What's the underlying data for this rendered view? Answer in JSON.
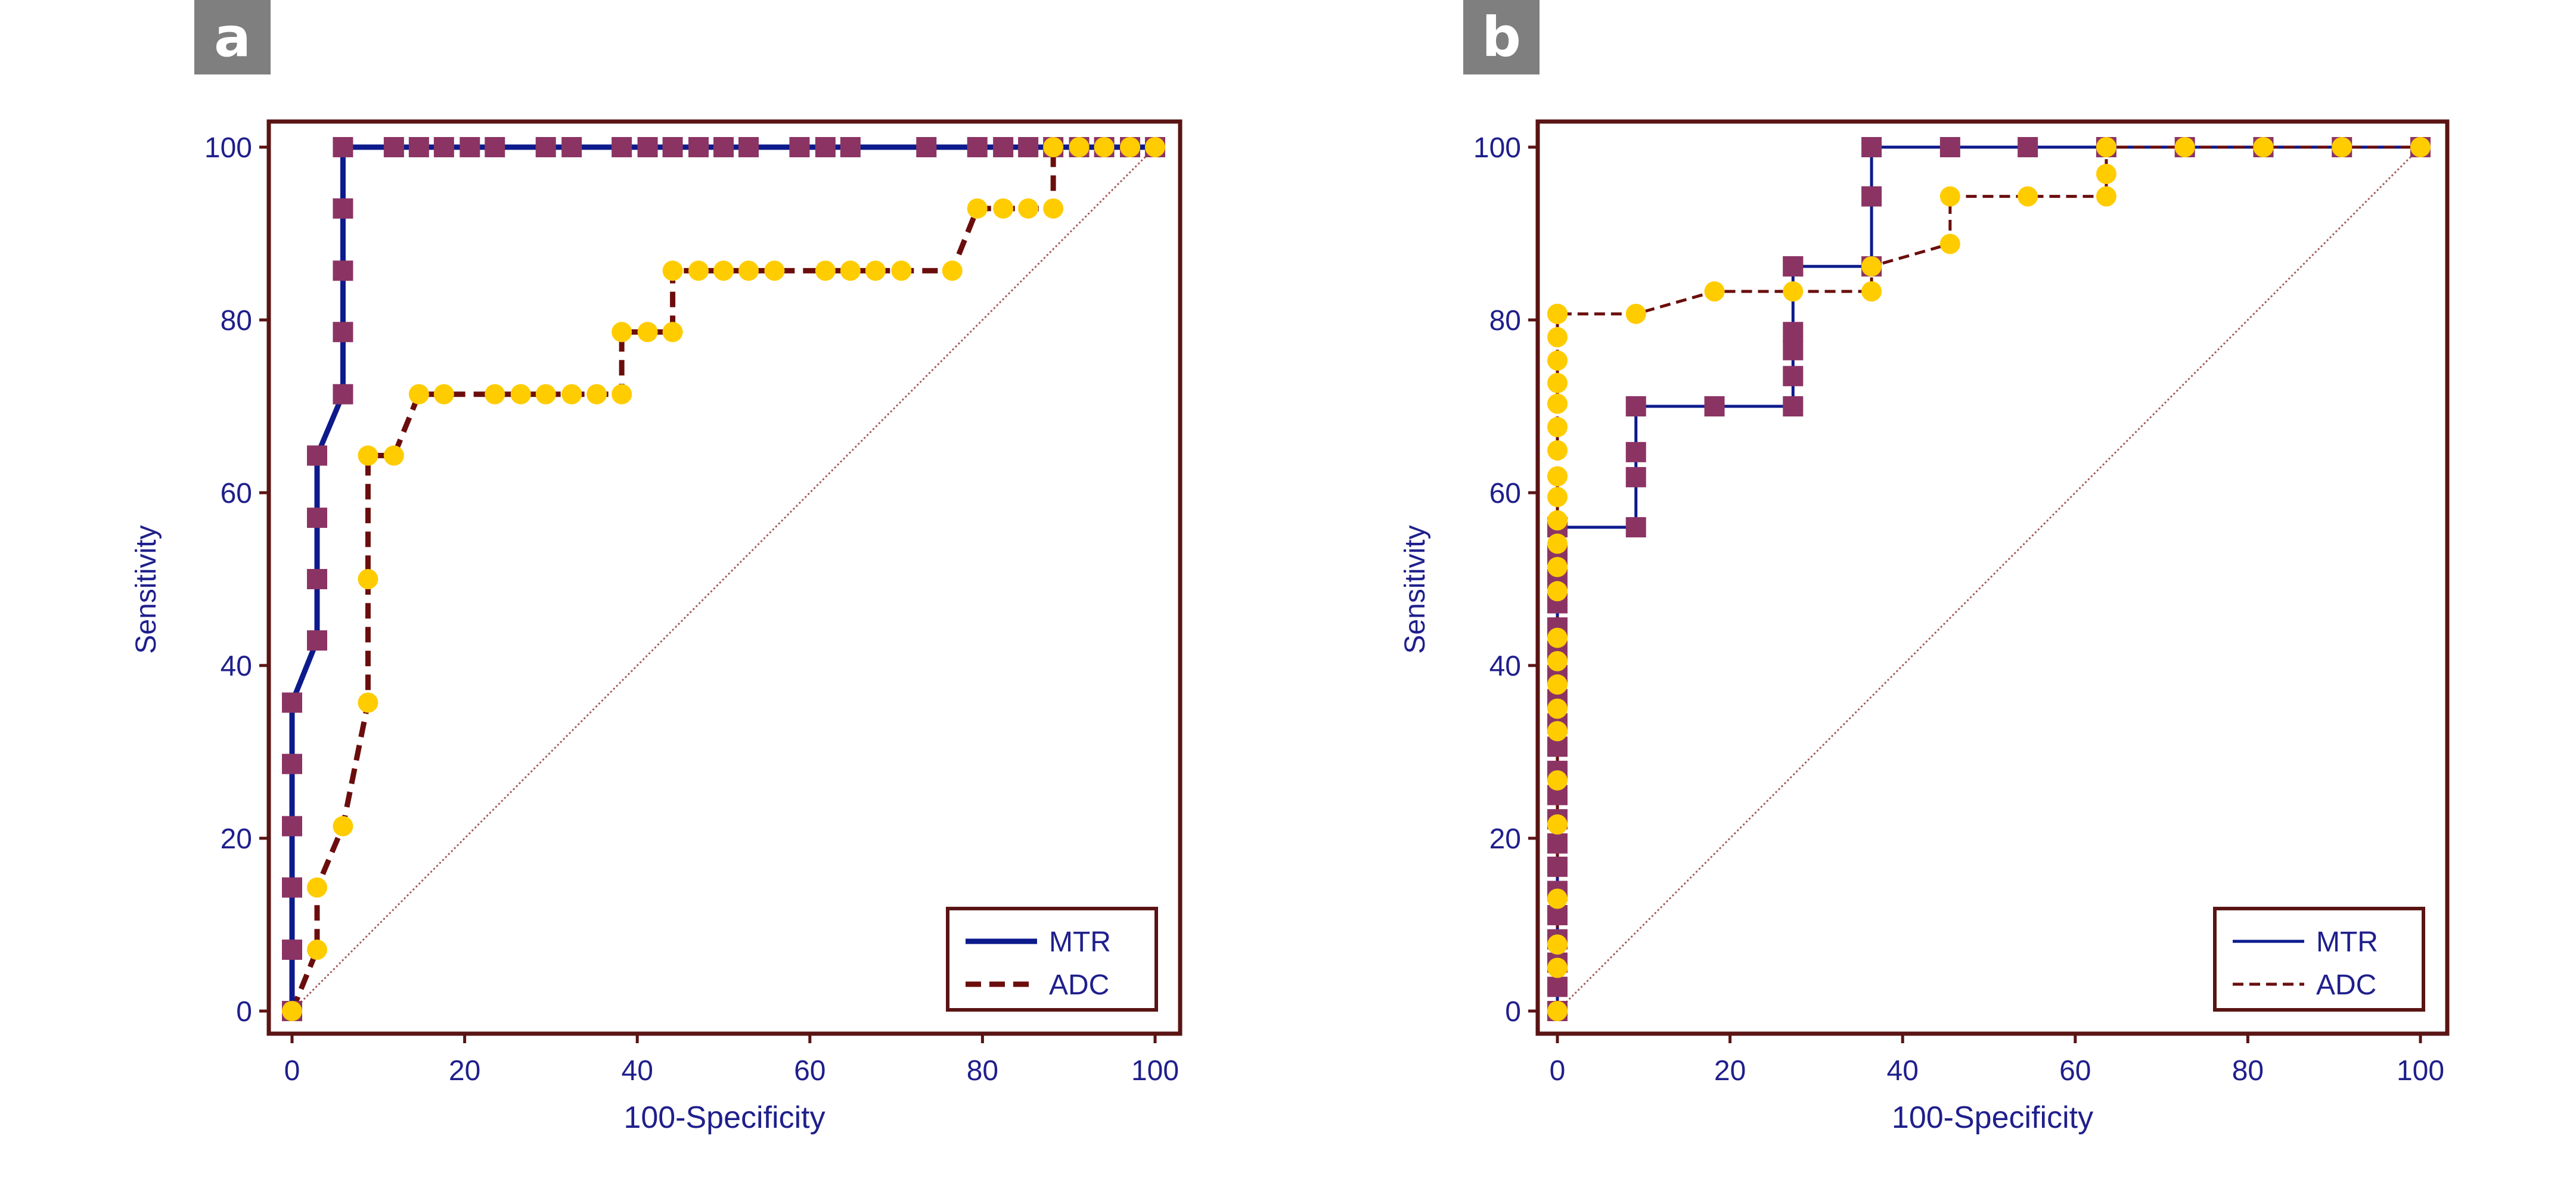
{
  "panels": [
    {
      "label": "a"
    },
    {
      "label": "b"
    }
  ],
  "colors": {
    "frame": "#5a1414",
    "axis_text": "#1f1f8c",
    "mtr_line": "#0d1a8c",
    "mtr_marker": "#8b3464",
    "adc_line": "#6b0d0d",
    "adc_marker": "#ffcc00",
    "diagonal": "#a35a5a"
  },
  "chart_data": [
    {
      "type": "line",
      "title": "",
      "xlabel": "100-Specificity",
      "ylabel": "Sensitivity",
      "xlim": [
        0,
        100
      ],
      "ylim": [
        0,
        100
      ],
      "xticks": [
        "0",
        "20",
        "40",
        "60",
        "80",
        "100"
      ],
      "yticks": [
        "0",
        "20",
        "40",
        "60",
        "80",
        "100"
      ],
      "grid": false,
      "legend_position": "bottom-right",
      "reference_line": {
        "x": [
          0,
          100
        ],
        "y": [
          0,
          100
        ]
      },
      "series": [
        {
          "name": "MTR",
          "style": "solid",
          "x": [
            0,
            0,
            0,
            0,
            0,
            0,
            2.9,
            2.9,
            2.9,
            2.9,
            5.9,
            5.9,
            5.9,
            5.9,
            5.9,
            11.8,
            14.7,
            17.6,
            20.6,
            23.5,
            29.4,
            32.4,
            38.2,
            41.2,
            44.1,
            47.1,
            50,
            52.9,
            58.8,
            61.8,
            64.7,
            73.5,
            79.4,
            82.4,
            85.3,
            88.2,
            91.2,
            94.1,
            97.1,
            100
          ],
          "y": [
            0,
            7.1,
            14.3,
            21.4,
            28.6,
            35.7,
            42.9,
            50,
            57.1,
            64.3,
            71.4,
            78.6,
            85.7,
            92.9,
            100,
            100,
            100,
            100,
            100,
            100,
            100,
            100,
            100,
            100,
            100,
            100,
            100,
            100,
            100,
            100,
            100,
            100,
            100,
            100,
            100,
            100,
            100,
            100,
            100,
            100
          ]
        },
        {
          "name": "ADC",
          "style": "dashed",
          "x": [
            0,
            2.9,
            2.9,
            5.9,
            8.8,
            8.8,
            8.8,
            11.8,
            14.7,
            17.6,
            23.5,
            26.5,
            29.4,
            32.4,
            35.3,
            38.2,
            38.2,
            41.2,
            44.1,
            44.1,
            47.1,
            50,
            52.9,
            55.9,
            61.8,
            64.7,
            67.6,
            70.6,
            76.5,
            79.4,
            82.4,
            85.3,
            88.2,
            88.2,
            91.2,
            94.1,
            97.1,
            100
          ],
          "y": [
            0,
            7.1,
            14.3,
            21.4,
            35.7,
            50,
            64.3,
            64.3,
            71.4,
            71.4,
            71.4,
            71.4,
            71.4,
            71.4,
            71.4,
            71.4,
            78.6,
            78.6,
            78.6,
            85.7,
            85.7,
            85.7,
            85.7,
            85.7,
            85.7,
            85.7,
            85.7,
            85.7,
            85.7,
            92.9,
            92.9,
            92.9,
            92.9,
            100,
            100,
            100,
            100,
            100
          ]
        }
      ]
    },
    {
      "type": "line",
      "title": "",
      "xlabel": "100-Specificity",
      "ylabel": "Sensitivity",
      "xlim": [
        0,
        100
      ],
      "ylim": [
        0,
        100
      ],
      "xticks": [
        "0",
        "20",
        "40",
        "60",
        "80",
        "100"
      ],
      "yticks": [
        "0",
        "20",
        "40",
        "60",
        "80",
        "100"
      ],
      "grid": false,
      "legend_position": "bottom-right",
      "reference_line": {
        "x": [
          0,
          100
        ],
        "y": [
          0,
          100
        ]
      },
      "series": [
        {
          "name": "MTR",
          "style": "solid",
          "x": [
            0,
            0,
            0,
            0,
            0,
            0,
            0,
            0,
            0,
            0,
            0,
            0,
            0,
            0,
            0,
            0,
            0,
            0,
            0,
            0,
            0,
            9.1,
            9.1,
            9.1,
            9.1,
            18.2,
            27.3,
            27.3,
            27.3,
            27.3,
            27.3,
            27.3,
            36.4,
            36.4,
            36.4,
            45.5,
            54.5,
            63.6,
            72.7,
            81.8,
            90.9,
            100
          ],
          "y": [
            0,
            2.8,
            5.6,
            8.3,
            11.1,
            13.9,
            16.7,
            19.4,
            22.2,
            25,
            27.8,
            30.6,
            33.3,
            36.1,
            38.9,
            41.7,
            44.4,
            47.2,
            50,
            52.8,
            56,
            56,
            61.8,
            64.7,
            70,
            70,
            70,
            73.5,
            76.5,
            78.6,
            86.2,
            86.2,
            86.2,
            94.3,
            100,
            100,
            100,
            100,
            100,
            100,
            100,
            100
          ]
        },
        {
          "name": "ADC",
          "style": "dashed",
          "x": [
            0,
            0,
            0,
            0,
            0,
            0,
            0,
            0,
            0,
            0,
            0,
            0,
            0,
            0,
            0,
            0,
            0,
            0,
            0,
            0,
            0,
            0,
            0,
            0,
            0,
            0,
            0,
            0,
            9.1,
            18.2,
            27.3,
            36.4,
            36.4,
            45.5,
            45.5,
            54.5,
            63.6,
            63.6,
            63.6,
            72.7,
            81.8,
            90.9,
            100
          ],
          "y": [
            0,
            5,
            7.7,
            13,
            21.6,
            26.7,
            32.4,
            35,
            37.8,
            40.5,
            43.2,
            48.6,
            51.4,
            54.1,
            56.8,
            59.5,
            61.9,
            64.9,
            67.6,
            70.3,
            72.7,
            75.3,
            78,
            80.7,
            80.7,
            80.7,
            80.7,
            80.7,
            80.7,
            83.3,
            83.3,
            83.3,
            86.2,
            88.8,
            94.3,
            94.3,
            94.3,
            96.9,
            100,
            100,
            100,
            100,
            100
          ]
        }
      ]
    }
  ]
}
